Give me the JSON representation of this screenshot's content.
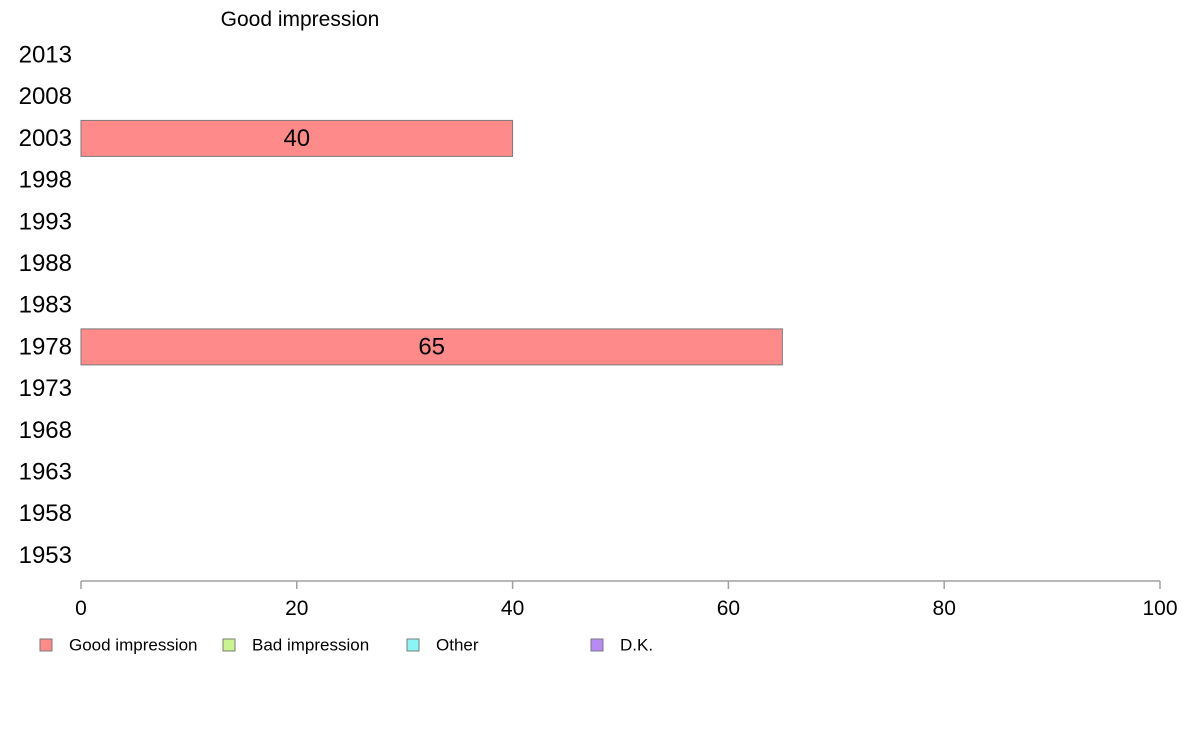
{
  "chart_data": {
    "type": "bar",
    "orientation": "horizontal",
    "title": "Good impression",
    "categories": [
      "2013",
      "2008",
      "2003",
      "1998",
      "1993",
      "1988",
      "1983",
      "1978",
      "1973",
      "1968",
      "1963",
      "1958",
      "1953"
    ],
    "series": [
      {
        "name": "Good impression",
        "color": "#ff8a8a",
        "values": [
          null,
          null,
          40,
          null,
          null,
          null,
          null,
          65,
          null,
          null,
          null,
          null,
          null
        ]
      }
    ],
    "xlim": [
      0,
      100
    ],
    "xticks": [
      0,
      20,
      40,
      60,
      80,
      100
    ],
    "grid": false,
    "legend": {
      "position": "bottom",
      "items": [
        {
          "label": "Good impression",
          "color": "#ff8a8a"
        },
        {
          "label": "Bad impression",
          "color": "#c9f58c"
        },
        {
          "label": "Other",
          "color": "#8af5f5"
        },
        {
          "label": "D.K.",
          "color": "#b78af5"
        }
      ]
    }
  }
}
